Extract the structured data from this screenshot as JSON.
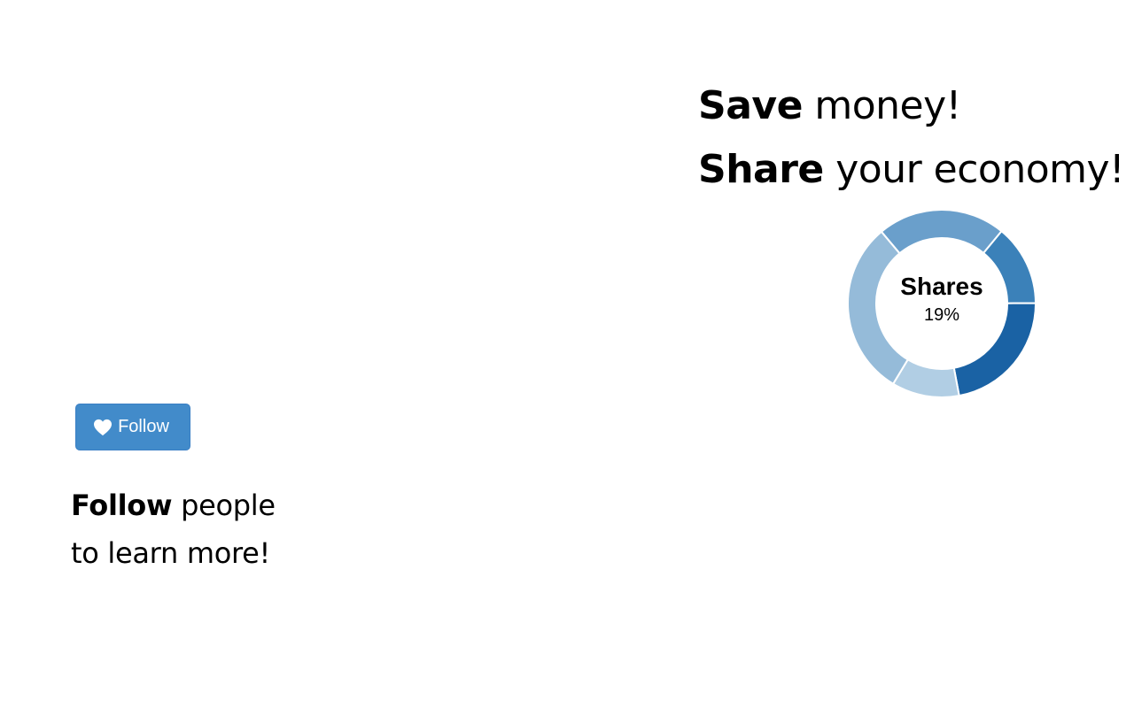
{
  "promo": {
    "save_bold": "Save",
    "save_rest": " money!",
    "share_bold": "Share",
    "share_rest": " your economy!"
  },
  "donut": {
    "center_label": "Shares",
    "center_value": "19%",
    "colors": [
      "#6a9fcb",
      "#3b81b9",
      "#1a62a4",
      "#b1cee4",
      "#95bbd9"
    ]
  },
  "chart_data": {
    "type": "pie",
    "values": [
      19,
      12,
      19,
      10,
      26
    ],
    "title": ""
  },
  "follow_button": {
    "label": "Follow",
    "icon": "heart-icon",
    "background": "#428bca"
  },
  "follow_text": {
    "bold": "Follow",
    "rest": " people",
    "line2": "to learn more!"
  }
}
